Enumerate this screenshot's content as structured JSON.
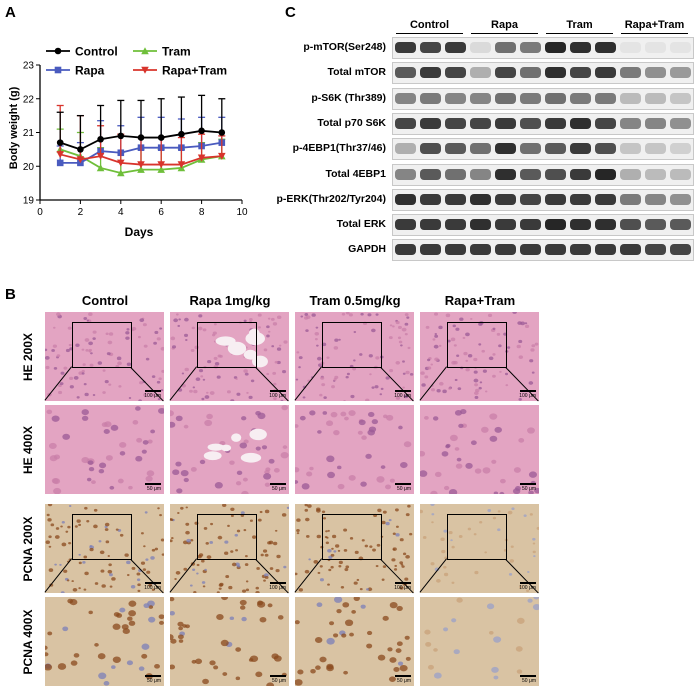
{
  "panels": {
    "a": "A",
    "b": "B",
    "c": "C"
  },
  "chart_data": {
    "type": "line",
    "xlabel": "Days",
    "ylabel": "Body weight (g)",
    "xlim": [
      0,
      10
    ],
    "ylim": [
      19,
      23
    ],
    "xticks": [
      0,
      2,
      4,
      6,
      8,
      10
    ],
    "yticks": [
      19,
      20,
      21,
      22,
      23
    ],
    "x": [
      1,
      2,
      3,
      4,
      5,
      6,
      7,
      8,
      9
    ],
    "series": [
      {
        "name": "Control",
        "color": "#000000",
        "marker": "circle",
        "values": [
          20.7,
          20.5,
          20.8,
          20.9,
          20.85,
          20.85,
          20.95,
          21.05,
          21.0
        ],
        "error": [
          0.9,
          1.0,
          1.0,
          1.05,
          1.1,
          1.15,
          1.1,
          1.05,
          1.0
        ]
      },
      {
        "name": "Rapa",
        "color": "#4a5bbf",
        "marker": "square",
        "values": [
          20.1,
          20.1,
          20.45,
          20.4,
          20.55,
          20.55,
          20.55,
          20.6,
          20.7
        ],
        "error": [
          0.5,
          0.6,
          0.9,
          0.8,
          0.9,
          0.9,
          0.85,
          0.85,
          0.75
        ]
      },
      {
        "name": "Tram",
        "color": "#6fbf3a",
        "marker": "triangle",
        "values": [
          20.5,
          20.3,
          19.95,
          19.8,
          19.9,
          19.9,
          19.95,
          20.2,
          20.3
        ],
        "error": [
          0.6,
          0.7,
          0.6,
          0.6,
          0.6,
          0.6,
          0.55,
          0.5,
          0.5
        ]
      },
      {
        "name": "Rapa+Tram",
        "color": "#d8342c",
        "marker": "triangle-down",
        "values": [
          20.35,
          20.2,
          20.3,
          20.1,
          20.05,
          20.05,
          20.05,
          20.25,
          20.3
        ],
        "error": [
          1.45,
          1.3,
          0.9,
          0.85,
          0.8,
          0.8,
          0.8,
          0.7,
          0.6
        ]
      }
    ]
  },
  "blot": {
    "groups": [
      "Control",
      "Rapa",
      "Tram",
      "Rapa+Tram"
    ],
    "rows": [
      {
        "label": "p-mTOR(Ser248)",
        "bands": [
          0.85,
          0.8,
          0.85,
          0.1,
          0.6,
          0.55,
          0.95,
          0.9,
          0.9,
          0.05,
          0.05,
          0.05
        ]
      },
      {
        "label": "Total mTOR",
        "bands": [
          0.7,
          0.85,
          0.8,
          0.3,
          0.8,
          0.6,
          0.9,
          0.8,
          0.85,
          0.55,
          0.45,
          0.4
        ]
      },
      {
        "label": "p-S6K (Thr389)",
        "bands": [
          0.5,
          0.55,
          0.5,
          0.5,
          0.6,
          0.55,
          0.6,
          0.55,
          0.55,
          0.25,
          0.25,
          0.2
        ]
      },
      {
        "label": "Total p70 S6K",
        "bands": [
          0.8,
          0.85,
          0.8,
          0.8,
          0.85,
          0.75,
          0.85,
          0.9,
          0.8,
          0.5,
          0.5,
          0.45
        ]
      },
      {
        "label": "p-4EBP1(Thr37/46)",
        "bands": [
          0.3,
          0.75,
          0.7,
          0.6,
          0.9,
          0.6,
          0.7,
          0.85,
          0.75,
          0.2,
          0.2,
          0.15
        ]
      },
      {
        "label": "Total 4EBP1",
        "bands": [
          0.5,
          0.7,
          0.6,
          0.5,
          0.9,
          0.7,
          0.75,
          0.85,
          0.95,
          0.3,
          0.25,
          0.25
        ]
      },
      {
        "label": "p-ERK(Thr202/Tyr204)",
        "bands": [
          0.9,
          0.85,
          0.85,
          0.9,
          0.85,
          0.8,
          0.85,
          0.85,
          0.85,
          0.55,
          0.5,
          0.45
        ]
      },
      {
        "label": "Total ERK",
        "bands": [
          0.85,
          0.85,
          0.85,
          0.9,
          0.85,
          0.85,
          0.95,
          0.9,
          0.9,
          0.75,
          0.7,
          0.7
        ]
      },
      {
        "label": "GAPDH",
        "bands": [
          0.85,
          0.85,
          0.85,
          0.85,
          0.85,
          0.85,
          0.85,
          0.85,
          0.85,
          0.85,
          0.8,
          0.8
        ]
      }
    ]
  },
  "histology": {
    "columns": [
      "Control",
      "Rapa 1mg/kg",
      "Tram 0.5mg/kg",
      "Rapa+Tram"
    ],
    "rows": [
      "HE 200X",
      "HE 400X",
      "PCNA 200X",
      "PCNA 400X"
    ],
    "scale_200": "100 μm",
    "scale_400": "50 μm",
    "he_color": "#e3a4c2",
    "pcna_color": "#d9c3a3"
  }
}
